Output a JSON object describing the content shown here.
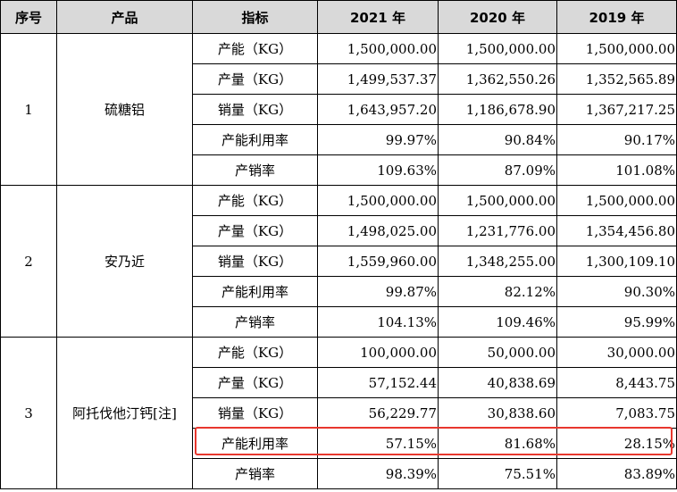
{
  "headers": [
    "序号",
    "产品",
    "指标",
    "2021 年",
    "2020 年",
    "2019 年"
  ],
  "groups": [
    {
      "seq": "1",
      "product": "硫糖铝",
      "rows": [
        {
          "metric": "产能（KG）",
          "y2021": "1,500,000.00",
          "y2020": "1,500,000.00",
          "y2019": "1,500,000.00"
        },
        {
          "metric": "产量（KG）",
          "y2021": "1,499,537.37",
          "y2020": "1,362,550.26",
          "y2019": "1,352,565.89"
        },
        {
          "metric": "销量（KG）",
          "y2021": "1,643,957.20",
          "y2020": "1,186,678.90",
          "y2019": "1,367,217.25"
        },
        {
          "metric": "产能利用率",
          "y2021": "99.97%",
          "y2020": "90.84%",
          "y2019": "90.17%"
        },
        {
          "metric": "产销率",
          "y2021": "109.63%",
          "y2020": "87.09%",
          "y2019": "101.08%"
        }
      ]
    },
    {
      "seq": "2",
      "product": "安乃近",
      "rows": [
        {
          "metric": "产能（KG）",
          "y2021": "1,500,000.00",
          "y2020": "1,500,000.00",
          "y2019": "1,500,000.00"
        },
        {
          "metric": "产量（KG）",
          "y2021": "1,498,025.00",
          "y2020": "1,231,776.00",
          "y2019": "1,354,456.80"
        },
        {
          "metric": "销量（KG）",
          "y2021": "1,559,960.00",
          "y2020": "1,348,255.00",
          "y2019": "1,300,109.10"
        },
        {
          "metric": "产能利用率",
          "y2021": "99.87%",
          "y2020": "82.12%",
          "y2019": "90.30%"
        },
        {
          "metric": "产销率",
          "y2021": "104.13%",
          "y2020": "109.46%",
          "y2019": "95.99%"
        }
      ]
    },
    {
      "seq": "3",
      "product": "阿托伐他汀钙[注]",
      "rows": [
        {
          "metric": "产能（KG）",
          "y2021": "100,000.00",
          "y2020": "50,000.00",
          "y2019": "30,000.00"
        },
        {
          "metric": "产量（KG）",
          "y2021": "57,152.44",
          "y2020": "40,838.69",
          "y2019": "8,443.75"
        },
        {
          "metric": "销量（KG）",
          "y2021": "56,229.77",
          "y2020": "30,838.60",
          "y2019": "7,083.75"
        },
        {
          "metric": "产能利用率",
          "y2021": "57.15%",
          "y2020": "81.68%",
          "y2019": "28.15%"
        },
        {
          "metric": "产销率",
          "y2021": "98.39%",
          "y2020": "75.51%",
          "y2019": "83.89%"
        }
      ]
    }
  ],
  "highlight_color": "#e8372e"
}
